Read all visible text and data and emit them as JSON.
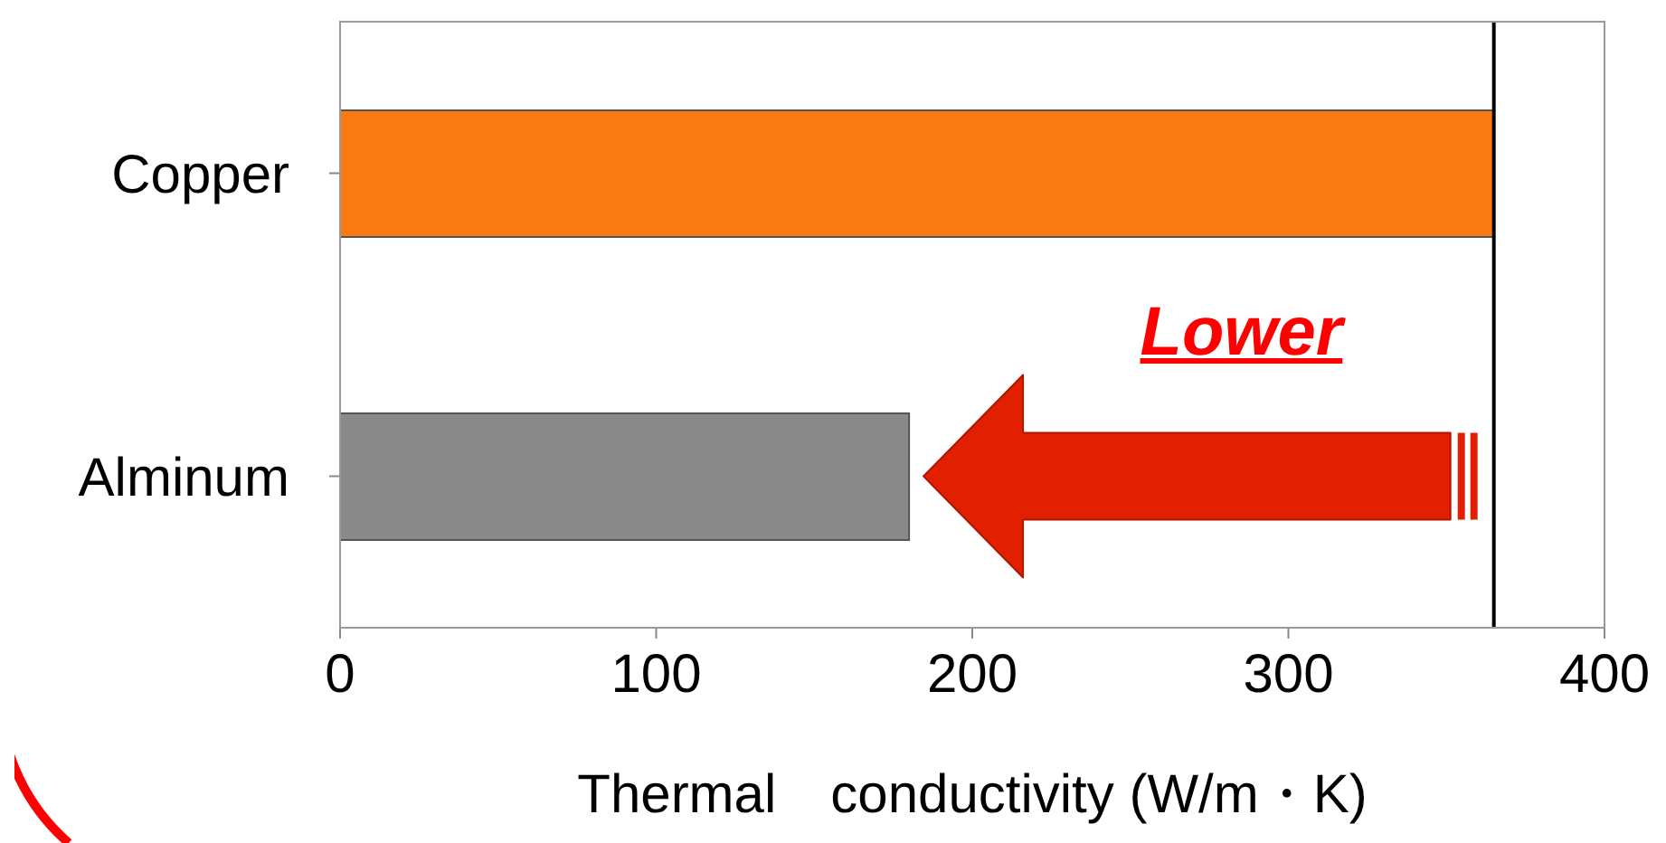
{
  "chart_data": {
    "type": "bar",
    "orientation": "horizontal",
    "categories": [
      "Copper",
      "Alminum"
    ],
    "values": [
      365,
      180
    ],
    "colors": [
      "#f97a12",
      "#8a8a8a"
    ],
    "xlim": [
      0,
      400
    ],
    "xticks": [
      0,
      100,
      200,
      300,
      400
    ],
    "xlabel": "Thermal　conductivity (W/m・K)",
    "ref_lines": [
      {
        "axis": "x",
        "value": 365,
        "color": "#000000"
      }
    ],
    "annotations": [
      "Lower"
    ]
  }
}
